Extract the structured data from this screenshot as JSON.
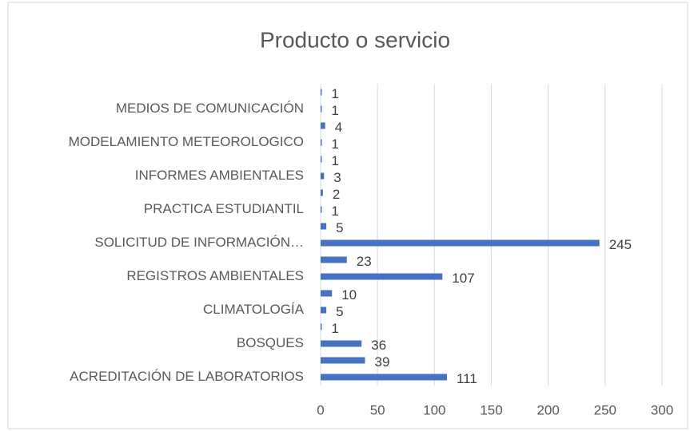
{
  "chart_data": {
    "type": "bar",
    "orientation": "horizontal",
    "title": "Producto o servicio",
    "categories": [
      "ACREDITACIÓN DE LABORATORIOS",
      null,
      "BOSQUES",
      null,
      "CLIMATOLOGÍA",
      null,
      "REGISTROS AMBIENTALES",
      null,
      "SOLICITUD DE INFORMACIÓN…",
      null,
      "PRACTICA ESTUDIANTIL",
      null,
      "INFORMES AMBIENTALES",
      null,
      "MODELAMIENTO METEOROLOGICO",
      null,
      "MEDIOS DE COMUNICACIÓN",
      null
    ],
    "values": [
      111,
      39,
      36,
      1,
      5,
      10,
      107,
      23,
      245,
      5,
      1,
      2,
      3,
      1,
      1,
      4,
      1,
      1
    ],
    "color": "#4472c4",
    "xlim": [
      0,
      300
    ],
    "xticks": [
      0,
      50,
      100,
      150,
      200,
      250,
      300
    ],
    "grid": true
  }
}
